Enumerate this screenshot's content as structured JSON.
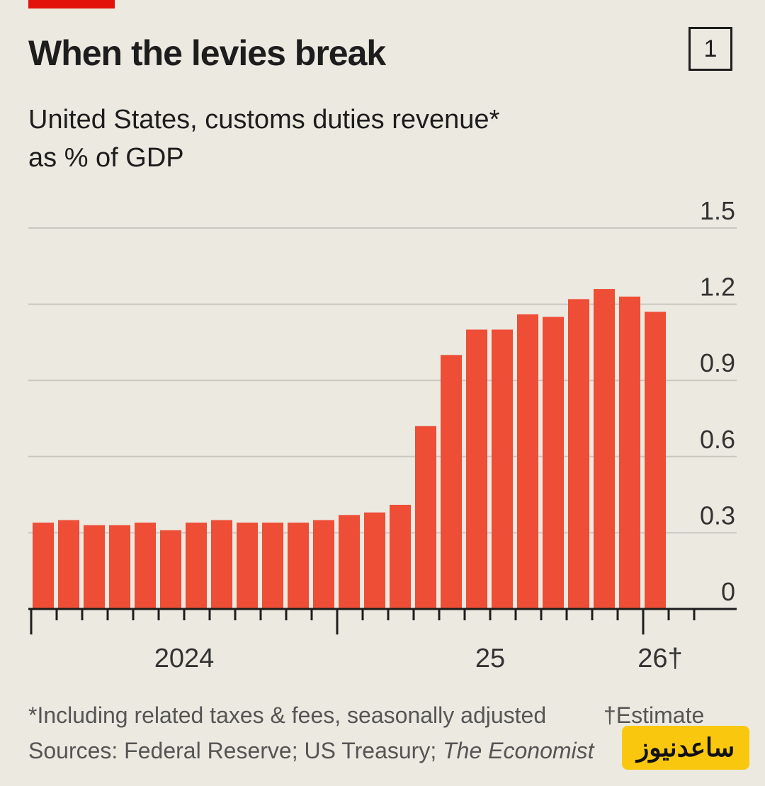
{
  "title": "When the levies break",
  "chart_number": "1",
  "subtitle": "United States, customs duties revenue* as % of GDP",
  "footnote_left": "*Including related taxes & fees, seasonally adjusted",
  "footnote_right": "†Estimate",
  "sources_prefix": "Sources: Federal Reserve; US Treasury; ",
  "sources_italic": "The Economist",
  "watermark": "ساعدنیوز",
  "colors": {
    "bar": "#ee4d36",
    "accent": "#e3120b",
    "background": "#ebe9e0"
  },
  "chart_data": {
    "type": "bar",
    "title": "When the levies break",
    "ylabel": "",
    "xlabel": "",
    "ylim": [
      0,
      1.5
    ],
    "yticks": [
      "0",
      "0.3",
      "0.6",
      "0.9",
      "1.2",
      "1.5"
    ],
    "grid": true,
    "x_tick_labels": [
      "2024",
      "25",
      "26†"
    ],
    "categories": [
      "2024-01",
      "2024-02",
      "2024-03",
      "2024-04",
      "2024-05",
      "2024-06",
      "2024-07",
      "2024-08",
      "2024-09",
      "2024-10",
      "2024-11",
      "2024-12",
      "2025-01",
      "2025-02",
      "2025-03",
      "2025-04",
      "2025-05",
      "2025-06",
      "2025-07",
      "2025-08",
      "2025-09",
      "2025-10",
      "2025-11",
      "2025-12",
      "2026-01"
    ],
    "values": [
      0.34,
      0.35,
      0.33,
      0.33,
      0.34,
      0.31,
      0.34,
      0.35,
      0.34,
      0.34,
      0.34,
      0.35,
      0.37,
      0.38,
      0.41,
      0.72,
      1.0,
      1.1,
      1.1,
      1.16,
      1.15,
      1.22,
      1.26,
      1.23,
      1.17
    ]
  }
}
